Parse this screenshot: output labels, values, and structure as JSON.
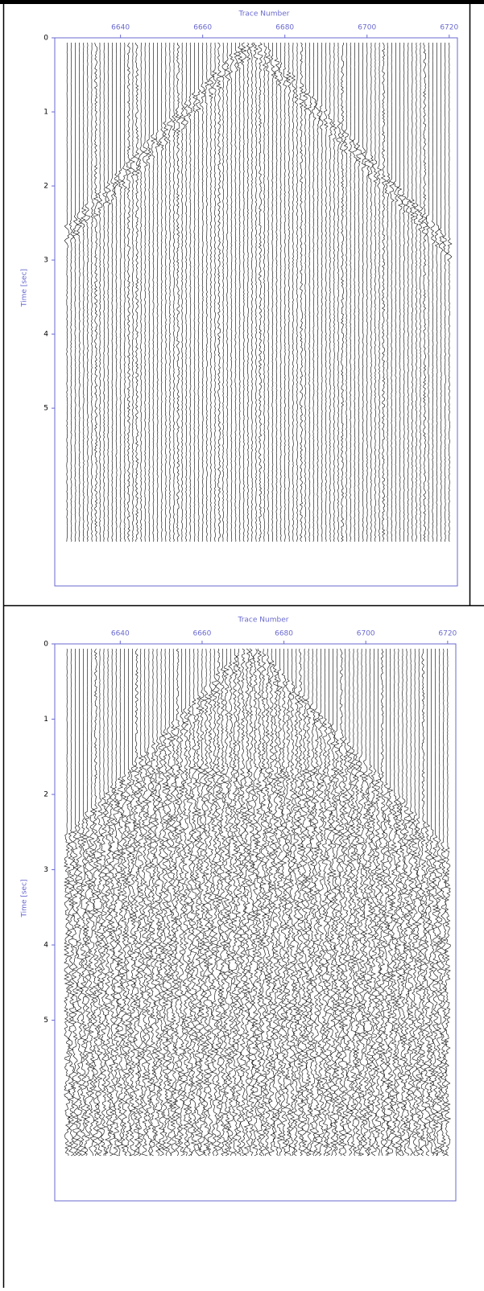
{
  "chart_data": [
    {
      "type": "seismic",
      "x_label": "Trace Number",
      "y_label": "Time [sec]",
      "xlim": [
        6624,
        6722
      ],
      "xticks": [
        6640,
        6660,
        6680,
        6700,
        6720
      ],
      "ylim": [
        0,
        7.4
      ],
      "yticks": [
        0,
        1,
        2,
        3,
        4,
        5
      ],
      "y_inverted": true,
      "axis_color": "#6a6ad0"
    },
    {
      "type": "seismic",
      "x_label": "Trace Number",
      "y_label": "Time [sec]",
      "xlim": [
        6624,
        6722
      ],
      "xticks": [
        6640,
        6660,
        6680,
        6700,
        6720
      ],
      "ylim": [
        0,
        7.4
      ],
      "yticks": [
        0,
        1,
        2,
        3,
        4,
        5
      ],
      "y_inverted": true,
      "axis_color": "#6a6ad0"
    }
  ]
}
